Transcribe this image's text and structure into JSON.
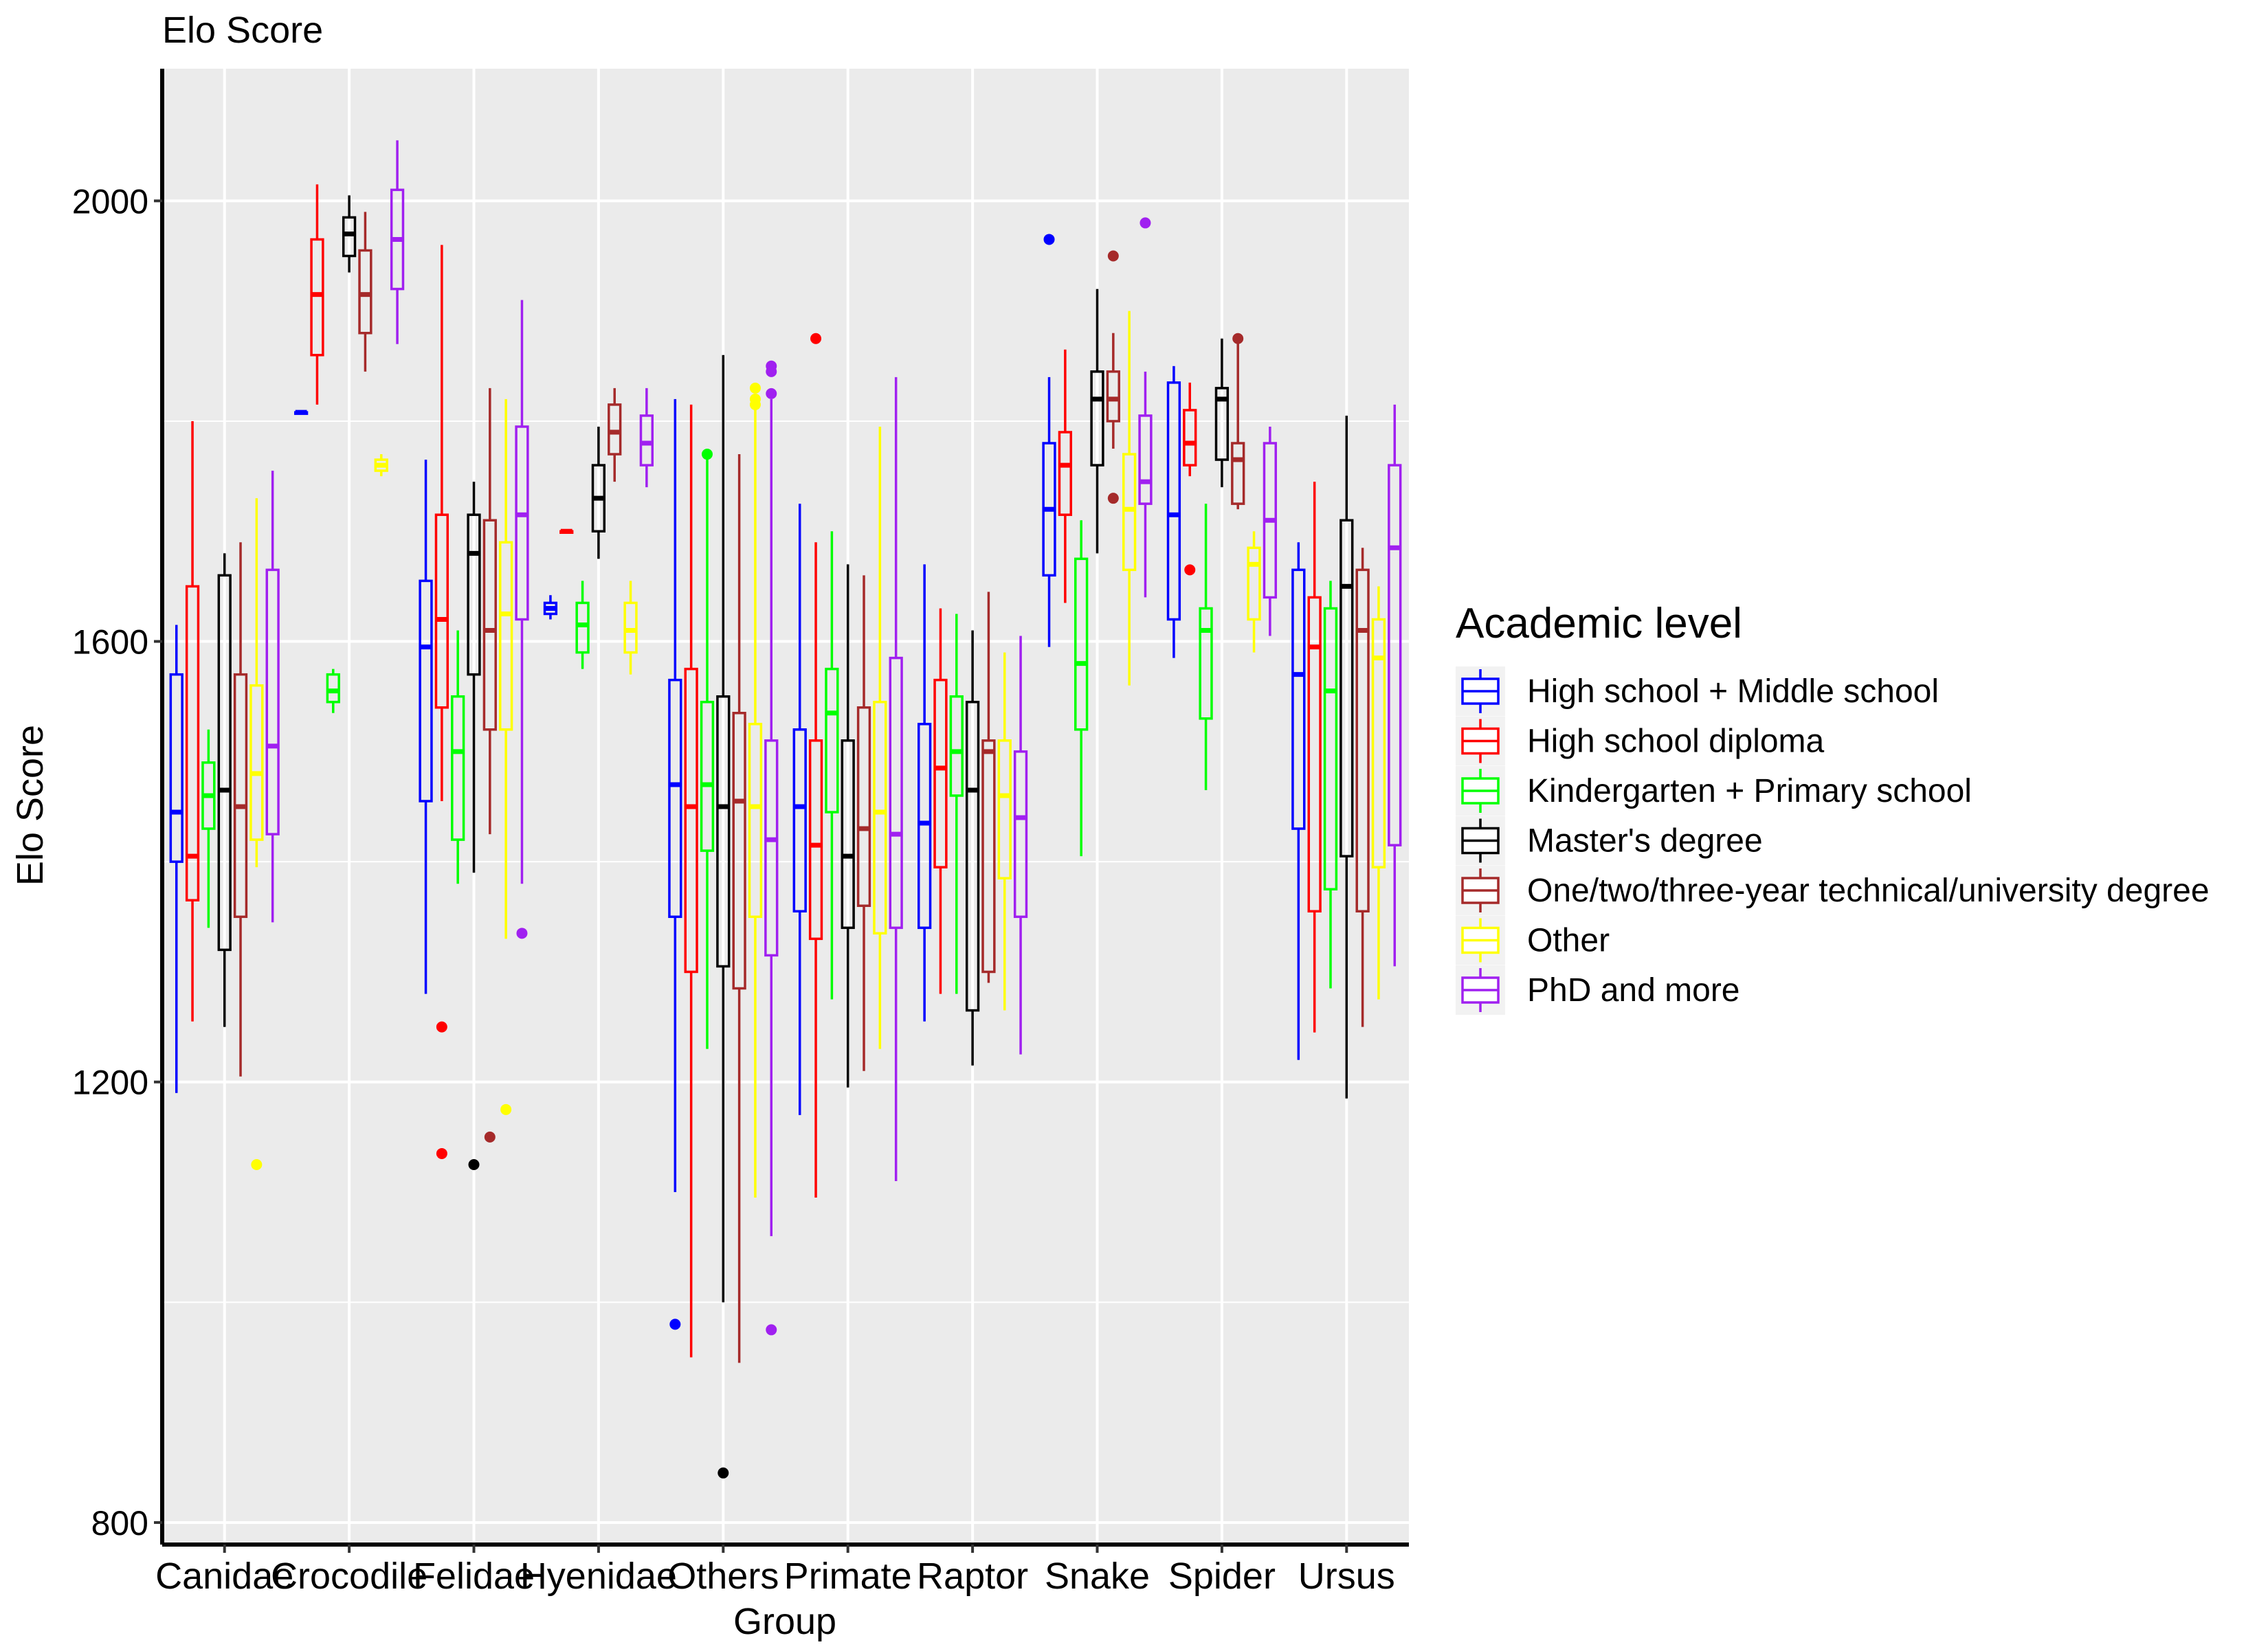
{
  "chart_data": {
    "type": "boxplot",
    "title": "Elo Score",
    "xlabel": "Group",
    "ylabel": "Elo Score",
    "ylim": [
      780,
      2120
    ],
    "yticks": [
      800,
      1200,
      1600,
      2000
    ],
    "ygrid_minor": [
      1000,
      1400,
      1800
    ],
    "grid": true,
    "categories": [
      "Canidae",
      "Crocodile",
      "Felidae",
      "Hyenidae",
      "Others",
      "Primate",
      "Raptor",
      "Snake",
      "Spider",
      "Ursus"
    ],
    "legend": {
      "title": "Academic level",
      "position": "right",
      "entries": [
        {
          "name": "High school + Middle school",
          "color": "#0000ff"
        },
        {
          "name": "High school diploma",
          "color": "#ff0000"
        },
        {
          "name": "Kindergarten + Primary school",
          "color": "#00ff00"
        },
        {
          "name": "Master's degree",
          "color": "#000000"
        },
        {
          "name": "One/two/three-year technical/university degree",
          "color": "#a52a2a"
        },
        {
          "name": "Other",
          "color": "#ffff00"
        },
        {
          "name": "PhD and more",
          "color": "#a020f0"
        }
      ]
    },
    "boxes": [
      {
        "group": "Canidae",
        "level": 0,
        "lo": 1190,
        "q1": 1400,
        "med": 1445,
        "q3": 1570,
        "hi": 1615,
        "out": []
      },
      {
        "group": "Canidae",
        "level": 1,
        "lo": 1255,
        "q1": 1365,
        "med": 1405,
        "q3": 1650,
        "hi": 1800,
        "out": []
      },
      {
        "group": "Canidae",
        "level": 2,
        "lo": 1340,
        "q1": 1430,
        "med": 1460,
        "q3": 1490,
        "hi": 1520,
        "out": []
      },
      {
        "group": "Canidae",
        "level": 3,
        "lo": 1250,
        "q1": 1320,
        "med": 1465,
        "q3": 1660,
        "hi": 1680,
        "out": []
      },
      {
        "group": "Canidae",
        "level": 4,
        "lo": 1205,
        "q1": 1350,
        "med": 1450,
        "q3": 1570,
        "hi": 1690,
        "out": []
      },
      {
        "group": "Canidae",
        "level": 5,
        "lo": 1395,
        "q1": 1420,
        "med": 1480,
        "q3": 1560,
        "hi": 1730,
        "out": [
          1125
        ]
      },
      {
        "group": "Canidae",
        "level": 6,
        "lo": 1345,
        "q1": 1425,
        "med": 1505,
        "q3": 1665,
        "hi": 1755,
        "out": []
      },
      {
        "group": "Crocodile",
        "level": 0,
        "lo": 1808,
        "q1": 1808,
        "med": 1808,
        "q3": 1808,
        "hi": 1808,
        "out": []
      },
      {
        "group": "Crocodile",
        "level": 1,
        "lo": 1815,
        "q1": 1860,
        "med": 1915,
        "q3": 1965,
        "hi": 2015,
        "out": []
      },
      {
        "group": "Crocodile",
        "level": 2,
        "lo": 1535,
        "q1": 1545,
        "med": 1555,
        "q3": 1570,
        "hi": 1575,
        "out": []
      },
      {
        "group": "Crocodile",
        "level": 3,
        "lo": 1935,
        "q1": 1950,
        "med": 1970,
        "q3": 1985,
        "hi": 2005,
        "out": []
      },
      {
        "group": "Crocodile",
        "level": 4,
        "lo": 1845,
        "q1": 1880,
        "med": 1915,
        "q3": 1955,
        "hi": 1990,
        "out": []
      },
      {
        "group": "Crocodile",
        "level": 5,
        "lo": 1750,
        "q1": 1755,
        "med": 1760,
        "q3": 1765,
        "hi": 1770,
        "out": []
      },
      {
        "group": "Crocodile",
        "level": 6,
        "lo": 1870,
        "q1": 1920,
        "med": 1965,
        "q3": 2010,
        "hi": 2055,
        "out": []
      },
      {
        "group": "Felidae",
        "level": 0,
        "lo": 1280,
        "q1": 1455,
        "med": 1595,
        "q3": 1655,
        "hi": 1765,
        "out": []
      },
      {
        "group": "Felidae",
        "level": 1,
        "lo": 1455,
        "q1": 1540,
        "med": 1620,
        "q3": 1715,
        "hi": 1960,
        "out": [
          1250,
          1135
        ]
      },
      {
        "group": "Felidae",
        "level": 2,
        "lo": 1380,
        "q1": 1420,
        "med": 1500,
        "q3": 1550,
        "hi": 1610,
        "out": []
      },
      {
        "group": "Felidae",
        "level": 3,
        "lo": 1390,
        "q1": 1570,
        "med": 1680,
        "q3": 1715,
        "hi": 1745,
        "out": [
          1125
        ]
      },
      {
        "group": "Felidae",
        "level": 4,
        "lo": 1425,
        "q1": 1520,
        "med": 1610,
        "q3": 1710,
        "hi": 1830,
        "out": [
          1150
        ]
      },
      {
        "group": "Felidae",
        "level": 5,
        "lo": 1330,
        "q1": 1520,
        "med": 1625,
        "q3": 1690,
        "hi": 1820,
        "out": [
          1175
        ]
      },
      {
        "group": "Felidae",
        "level": 6,
        "lo": 1380,
        "q1": 1620,
        "med": 1715,
        "q3": 1795,
        "hi": 1910,
        "out": [
          1335
        ]
      },
      {
        "group": "Hyenidae",
        "level": 0,
        "lo": 1620,
        "q1": 1625,
        "med": 1630,
        "q3": 1635,
        "hi": 1642,
        "out": []
      },
      {
        "group": "Hyenidae",
        "level": 1,
        "lo": 1700,
        "q1": 1700,
        "med": 1700,
        "q3": 1700,
        "hi": 1700,
        "out": []
      },
      {
        "group": "Hyenidae",
        "level": 2,
        "lo": 1575,
        "q1": 1590,
        "med": 1615,
        "q3": 1635,
        "hi": 1655,
        "out": []
      },
      {
        "group": "Hyenidae",
        "level": 3,
        "lo": 1675,
        "q1": 1700,
        "med": 1730,
        "q3": 1760,
        "hi": 1795,
        "out": []
      },
      {
        "group": "Hyenidae",
        "level": 4,
        "lo": 1745,
        "q1": 1770,
        "med": 1790,
        "q3": 1815,
        "hi": 1830,
        "out": []
      },
      {
        "group": "Hyenidae",
        "level": 5,
        "lo": 1570,
        "q1": 1590,
        "med": 1610,
        "q3": 1635,
        "hi": 1655,
        "out": []
      },
      {
        "group": "Hyenidae",
        "level": 6,
        "lo": 1740,
        "q1": 1760,
        "med": 1780,
        "q3": 1805,
        "hi": 1830,
        "out": []
      },
      {
        "group": "Others",
        "level": 0,
        "lo": 1100,
        "q1": 1350,
        "med": 1470,
        "q3": 1565,
        "hi": 1820,
        "out": [
          980
        ]
      },
      {
        "group": "Others",
        "level": 1,
        "lo": 950,
        "q1": 1300,
        "med": 1450,
        "q3": 1575,
        "hi": 1815,
        "out": []
      },
      {
        "group": "Others",
        "level": 2,
        "lo": 1230,
        "q1": 1410,
        "med": 1470,
        "q3": 1545,
        "hi": 1765,
        "out": [
          1770
        ]
      },
      {
        "group": "Others",
        "level": 3,
        "lo": 1000,
        "q1": 1305,
        "med": 1450,
        "q3": 1550,
        "hi": 1860,
        "out": [
          845
        ]
      },
      {
        "group": "Others",
        "level": 4,
        "lo": 945,
        "q1": 1285,
        "med": 1455,
        "q3": 1535,
        "hi": 1770,
        "out": []
      },
      {
        "group": "Others",
        "level": 5,
        "lo": 1095,
        "q1": 1350,
        "med": 1450,
        "q3": 1525,
        "hi": 1820,
        "out": [
          1830,
          1820,
          1815
        ]
      },
      {
        "group": "Others",
        "level": 6,
        "lo": 1060,
        "q1": 1315,
        "med": 1420,
        "q3": 1510,
        "hi": 1820,
        "out": [
          975,
          1850,
          1845,
          1825
        ]
      },
      {
        "group": "Primate",
        "level": 0,
        "lo": 1170,
        "q1": 1355,
        "med": 1450,
        "q3": 1520,
        "hi": 1725,
        "out": []
      },
      {
        "group": "Primate",
        "level": 1,
        "lo": 1095,
        "q1": 1330,
        "med": 1415,
        "q3": 1510,
        "hi": 1690,
        "out": [
          1875
        ]
      },
      {
        "group": "Primate",
        "level": 2,
        "lo": 1275,
        "q1": 1445,
        "med": 1535,
        "q3": 1575,
        "hi": 1700,
        "out": []
      },
      {
        "group": "Primate",
        "level": 3,
        "lo": 1195,
        "q1": 1340,
        "med": 1405,
        "q3": 1510,
        "hi": 1670,
        "out": []
      },
      {
        "group": "Primate",
        "level": 4,
        "lo": 1210,
        "q1": 1360,
        "med": 1430,
        "q3": 1540,
        "hi": 1660,
        "out": []
      },
      {
        "group": "Primate",
        "level": 5,
        "lo": 1230,
        "q1": 1335,
        "med": 1445,
        "q3": 1545,
        "hi": 1795,
        "out": []
      },
      {
        "group": "Primate",
        "level": 6,
        "lo": 1110,
        "q1": 1340,
        "med": 1425,
        "q3": 1585,
        "hi": 1840,
        "out": []
      },
      {
        "group": "Raptor",
        "level": 0,
        "lo": 1255,
        "q1": 1340,
        "med": 1435,
        "q3": 1525,
        "hi": 1670,
        "out": []
      },
      {
        "group": "Raptor",
        "level": 1,
        "lo": 1280,
        "q1": 1395,
        "med": 1485,
        "q3": 1565,
        "hi": 1630,
        "out": []
      },
      {
        "group": "Raptor",
        "level": 2,
        "lo": 1280,
        "q1": 1460,
        "med": 1500,
        "q3": 1550,
        "hi": 1625,
        "out": []
      },
      {
        "group": "Raptor",
        "level": 3,
        "lo": 1215,
        "q1": 1265,
        "med": 1465,
        "q3": 1545,
        "hi": 1610,
        "out": []
      },
      {
        "group": "Raptor",
        "level": 4,
        "lo": 1290,
        "q1": 1300,
        "med": 1500,
        "q3": 1510,
        "hi": 1645,
        "out": []
      },
      {
        "group": "Raptor",
        "level": 5,
        "lo": 1265,
        "q1": 1385,
        "med": 1460,
        "q3": 1510,
        "hi": 1590,
        "out": []
      },
      {
        "group": "Raptor",
        "level": 6,
        "lo": 1225,
        "q1": 1350,
        "med": 1440,
        "q3": 1500,
        "hi": 1605,
        "out": []
      },
      {
        "group": "Snake",
        "level": 0,
        "lo": 1595,
        "q1": 1660,
        "med": 1720,
        "q3": 1780,
        "hi": 1840,
        "out": [
          1965
        ]
      },
      {
        "group": "Snake",
        "level": 1,
        "lo": 1635,
        "q1": 1715,
        "med": 1760,
        "q3": 1790,
        "hi": 1865,
        "out": []
      },
      {
        "group": "Snake",
        "level": 2,
        "lo": 1405,
        "q1": 1520,
        "med": 1580,
        "q3": 1675,
        "hi": 1710,
        "out": []
      },
      {
        "group": "Snake",
        "level": 3,
        "lo": 1680,
        "q1": 1760,
        "med": 1820,
        "q3": 1845,
        "hi": 1920,
        "out": []
      },
      {
        "group": "Snake",
        "level": 4,
        "lo": 1775,
        "q1": 1800,
        "med": 1820,
        "q3": 1845,
        "hi": 1880,
        "out": [
          1950,
          1730
        ]
      },
      {
        "group": "Snake",
        "level": 5,
        "lo": 1560,
        "q1": 1665,
        "med": 1720,
        "q3": 1770,
        "hi": 1900,
        "out": []
      },
      {
        "group": "Snake",
        "level": 6,
        "lo": 1640,
        "q1": 1725,
        "med": 1745,
        "q3": 1805,
        "hi": 1845,
        "out": [
          1980
        ]
      },
      {
        "group": "Spider",
        "level": 0,
        "lo": 1585,
        "q1": 1620,
        "med": 1715,
        "q3": 1835,
        "hi": 1850,
        "out": []
      },
      {
        "group": "Spider",
        "level": 1,
        "lo": 1750,
        "q1": 1760,
        "med": 1780,
        "q3": 1810,
        "hi": 1835,
        "out": [
          1665
        ]
      },
      {
        "group": "Spider",
        "level": 2,
        "lo": 1465,
        "q1": 1530,
        "med": 1610,
        "q3": 1630,
        "hi": 1725,
        "out": []
      },
      {
        "group": "Spider",
        "level": 3,
        "lo": 1740,
        "q1": 1765,
        "med": 1820,
        "q3": 1830,
        "hi": 1875,
        "out": []
      },
      {
        "group": "Spider",
        "level": 4,
        "lo": 1720,
        "q1": 1725,
        "med": 1765,
        "q3": 1780,
        "hi": 1875,
        "out": [
          1875
        ]
      },
      {
        "group": "Spider",
        "level": 5,
        "lo": 1590,
        "q1": 1620,
        "med": 1670,
        "q3": 1685,
        "hi": 1700,
        "out": []
      },
      {
        "group": "Spider",
        "level": 6,
        "lo": 1605,
        "q1": 1640,
        "med": 1710,
        "q3": 1780,
        "hi": 1795,
        "out": []
      },
      {
        "group": "Ursus",
        "level": 0,
        "lo": 1220,
        "q1": 1430,
        "med": 1570,
        "q3": 1665,
        "hi": 1690,
        "out": []
      },
      {
        "group": "Ursus",
        "level": 1,
        "lo": 1245,
        "q1": 1355,
        "med": 1595,
        "q3": 1640,
        "hi": 1745,
        "out": []
      },
      {
        "group": "Ursus",
        "level": 2,
        "lo": 1285,
        "q1": 1375,
        "med": 1555,
        "q3": 1630,
        "hi": 1655,
        "out": []
      },
      {
        "group": "Ursus",
        "level": 3,
        "lo": 1185,
        "q1": 1405,
        "med": 1650,
        "q3": 1710,
        "hi": 1805,
        "out": []
      },
      {
        "group": "Ursus",
        "level": 4,
        "lo": 1250,
        "q1": 1355,
        "med": 1610,
        "q3": 1665,
        "hi": 1685,
        "out": []
      },
      {
        "group": "Ursus",
        "level": 5,
        "lo": 1275,
        "q1": 1395,
        "med": 1585,
        "q3": 1620,
        "hi": 1650,
        "out": []
      },
      {
        "group": "Ursus",
        "level": 6,
        "lo": 1305,
        "q1": 1415,
        "med": 1685,
        "q3": 1760,
        "hi": 1815,
        "out": []
      }
    ]
  }
}
